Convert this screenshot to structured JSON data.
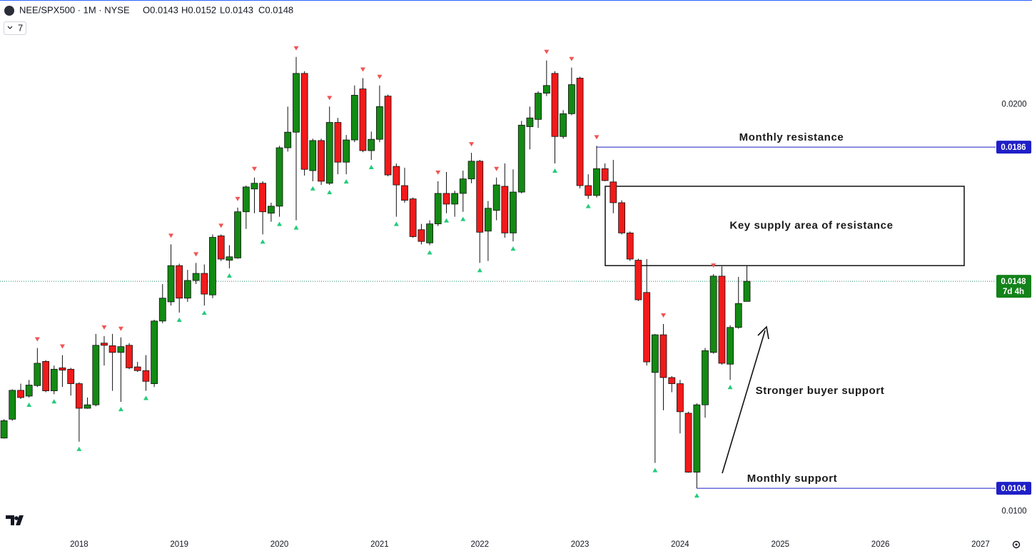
{
  "chart_data": {
    "type": "candlestick",
    "title": "NEE/SPX500 · 1M · NYSE",
    "ohlc_header": [
      "O0.0143",
      "H0.0152",
      "L0.0143",
      "C0.0148"
    ],
    "indicators": "7",
    "log_scale": true,
    "grid": false,
    "up_color": "#138a13",
    "down_color": "#f21a1a",
    "x": [
      2017.25,
      2017.333,
      2017.417,
      2017.5,
      2017.583,
      2017.667,
      2017.75,
      2017.833,
      2017.917,
      2018,
      2018.083,
      2018.167,
      2018.25,
      2018.333,
      2018.417,
      2018.5,
      2018.583,
      2018.667,
      2018.75,
      2018.833,
      2018.917,
      2019,
      2019.083,
      2019.167,
      2019.25,
      2019.333,
      2019.417,
      2019.5,
      2019.583,
      2019.667,
      2019.75,
      2019.833,
      2019.917,
      2020,
      2020.083,
      2020.167,
      2020.25,
      2020.333,
      2020.417,
      2020.5,
      2020.583,
      2020.667,
      2020.75,
      2020.833,
      2020.917,
      2021,
      2021.083,
      2021.167,
      2021.25,
      2021.333,
      2021.417,
      2021.5,
      2021.583,
      2021.667,
      2021.75,
      2021.833,
      2021.917,
      2022,
      2022.083,
      2022.167,
      2022.25,
      2022.333,
      2022.417,
      2022.5,
      2022.583,
      2022.667,
      2022.75,
      2022.833,
      2022.917,
      2023,
      2023.083,
      2023.167,
      2023.25,
      2023.333,
      2023.417,
      2023.5,
      2023.583,
      2023.667,
      2023.75,
      2023.833,
      2023.917,
      2024,
      2024.083,
      2024.167,
      2024.25,
      2024.333,
      2024.417,
      2024.5,
      2024.583,
      2024.667
    ],
    "open": [
      0.01133,
      0.0117,
      0.01229,
      0.01217,
      0.01239,
      0.01291,
      0.01228,
      0.01277,
      0.01274,
      0.01243,
      0.01192,
      0.01199,
      0.01332,
      0.01326,
      0.01311,
      0.01327,
      0.01279,
      0.01271,
      0.01243,
      0.01383,
      0.01429,
      0.0152,
      0.01438,
      0.01482,
      0.015,
      0.01446,
      0.01599,
      0.01534,
      0.0154,
      0.01666,
      0.01732,
      0.01749,
      0.01662,
      0.01682,
      0.01858,
      0.01908,
      0.02109,
      0.01787,
      0.01881,
      0.01749,
      0.0194,
      0.01813,
      0.01883,
      0.02054,
      0.01849,
      0.01885,
      0.02029,
      0.018,
      0.01742,
      0.01703,
      0.01616,
      0.0158,
      0.01632,
      0.01719,
      0.01688,
      0.01719,
      0.01762,
      0.01816,
      0.01612,
      0.0167,
      0.0174,
      0.01607,
      0.01723,
      0.01926,
      0.0195,
      0.02039,
      0.02109,
      0.01894,
      0.01969,
      0.02092,
      0.01742,
      0.01713,
      0.01793,
      0.01753,
      0.01692,
      0.01607,
      0.01534,
      0.01452,
      0.01267,
      0.01351,
      0.01256,
      0.01243,
      0.01182,
      0.01069,
      0.01199,
      0.01311,
      0.01493,
      0.01285,
      0.01368,
      0.0143
    ],
    "high": [
      0.0117,
      0.01231,
      0.01243,
      0.01251,
      0.01321,
      0.01294,
      0.01282,
      0.01305,
      0.01277,
      0.01246,
      0.01214,
      0.01353,
      0.01348,
      0.01353,
      0.01345,
      0.01332,
      0.0129,
      0.01305,
      0.01386,
      0.01473,
      0.01576,
      0.01525,
      0.01509,
      0.01527,
      0.01523,
      0.01603,
      0.01603,
      0.01574,
      0.01678,
      0.01742,
      0.01766,
      0.01755,
      0.01692,
      0.01864,
      0.01993,
      0.02169,
      0.02117,
      0.01887,
      0.01887,
      0.01993,
      0.01955,
      0.01899,
      0.02066,
      0.02092,
      0.0191,
      0.02066,
      0.02034,
      0.01809,
      0.01796,
      0.01707,
      0.01632,
      0.01642,
      0.01755,
      0.01783,
      0.01727,
      0.01787,
      0.01842,
      0.0182,
      0.01697,
      0.01766,
      0.01809,
      0.01791,
      0.01945,
      0.01993,
      0.02046,
      0.02156,
      0.02117,
      0.01981,
      0.0213,
      0.02097,
      0.01776,
      0.01864,
      0.01809,
      0.0182,
      0.01699,
      0.01611,
      0.01538,
      0.01537,
      0.01353,
      0.01376,
      0.01259,
      0.01251,
      0.01185,
      0.01202,
      0.01321,
      0.01498,
      0.01518,
      0.01373,
      0.01491,
      0.0152
    ],
    "low": [
      0.01132,
      0.01167,
      0.01211,
      0.01214,
      0.01236,
      0.01225,
      0.01221,
      0.01236,
      0.01218,
      0.01126,
      0.01191,
      0.01196,
      0.01282,
      0.01228,
      0.01205,
      0.01274,
      0.01268,
      0.01228,
      0.01236,
      0.01378,
      0.0142,
      0.01403,
      0.01429,
      0.01473,
      0.0142,
      0.01438,
      0.01532,
      0.01513,
      0.01538,
      0.01618,
      0.01662,
      0.01603,
      0.01638,
      0.01652,
      0.01846,
      0.01642,
      0.01772,
      0.01755,
      0.01744,
      0.01744,
      0.01776,
      0.01776,
      0.01876,
      0.01844,
      0.0182,
      0.01876,
      0.0177,
      0.01652,
      0.01692,
      0.01594,
      0.01576,
      0.01574,
      0.01626,
      0.01662,
      0.01652,
      0.01666,
      0.01749,
      0.01527,
      0.01532,
      0.01642,
      0.01594,
      0.01584,
      0.01719,
      0.01853,
      0.01922,
      0.02029,
      0.01809,
      0.01887,
      0.01964,
      0.01734,
      0.01703,
      0.01707,
      0.01755,
      0.01662,
      0.01603,
      0.01532,
      0.01431,
      0.01282,
      0.01086,
      0.01188,
      0.01225,
      0.01142,
      0.01068,
      0.0104,
      0.01173,
      0.01308,
      0.01284,
      0.01251,
      0.01365,
      0.0143
    ],
    "close": [
      0.01167,
      0.01229,
      0.01214,
      0.0124,
      0.01287,
      0.01228,
      0.01274,
      0.01272,
      0.01243,
      0.01192,
      0.01199,
      0.01327,
      0.01327,
      0.01311,
      0.01324,
      0.01277,
      0.01271,
      0.01248,
      0.01383,
      0.01438,
      0.0152,
      0.01438,
      0.01482,
      0.015,
      0.01448,
      0.01595,
      0.01537,
      0.01543,
      0.01666,
      0.01738,
      0.01749,
      0.01666,
      0.01682,
      0.01858,
      0.01908,
      0.02109,
      0.01791,
      0.01881,
      0.01755,
      0.0194,
      0.01813,
      0.01883,
      0.02032,
      0.01849,
      0.01885,
      0.01993,
      0.01774,
      0.01744,
      0.01699,
      0.01597,
      0.01584,
      0.01632,
      0.01719,
      0.01688,
      0.01719,
      0.01762,
      0.01816,
      0.01609,
      0.01676,
      0.01744,
      0.01607,
      0.01723,
      0.01931,
      0.01955,
      0.02039,
      0.02066,
      0.01894,
      0.01969,
      0.02069,
      0.01742,
      0.01713,
      0.01793,
      0.01757,
      0.01692,
      0.01607,
      0.01537,
      0.01434,
      0.0129,
      0.01351,
      0.01256,
      0.01243,
      0.01185,
      0.01069,
      0.01199,
      0.01315,
      0.01493,
      0.01287,
      0.01368,
      0.01425,
      0.0148
    ],
    "markers_up": [
      4,
      7,
      12,
      14,
      20,
      23,
      26,
      28,
      30,
      35,
      39,
      43,
      45,
      52,
      56,
      59,
      65,
      68,
      71,
      79,
      85
    ],
    "markers_down": [
      3,
      6,
      9,
      14,
      17,
      21,
      24,
      27,
      31,
      33,
      35,
      37,
      39,
      41,
      44,
      47,
      51,
      53,
      55,
      57,
      61,
      66,
      70,
      78,
      83,
      87
    ],
    "marker_up_color": "#f05454",
    "marker_down_color": "#22cc7a",
    "xlim": [
      2017.21,
      2027.15
    ],
    "xticks": [
      2018,
      2019,
      2020,
      2021,
      2022,
      2023,
      2024,
      2025,
      2026,
      2027
    ],
    "ylim": [
      0.0096,
      0.0239
    ],
    "yticks": [
      {
        "value": 0.02,
        "label": "0.0200"
      },
      {
        "value": 0.01,
        "label": "0.0100"
      }
    ],
    "levels": [
      {
        "value": 0.0186,
        "label": "0.0186",
        "from": 71,
        "color": "#1f1fc8",
        "text": "Monthly resistance"
      },
      {
        "value": 0.0104,
        "label": "0.0104",
        "from": 83,
        "color": "#1f1fc8",
        "text": "Monthly support"
      }
    ],
    "current_price": {
      "value": 0.0148,
      "label": "0.0148",
      "countdown": "7d 4h",
      "color": "#13821a"
    },
    "supply_zone": {
      "range": [
        0.0152,
        0.0174
      ],
      "text": "Key supply area of resistance"
    },
    "annotations": [
      "Stronger buyer support"
    ]
  }
}
